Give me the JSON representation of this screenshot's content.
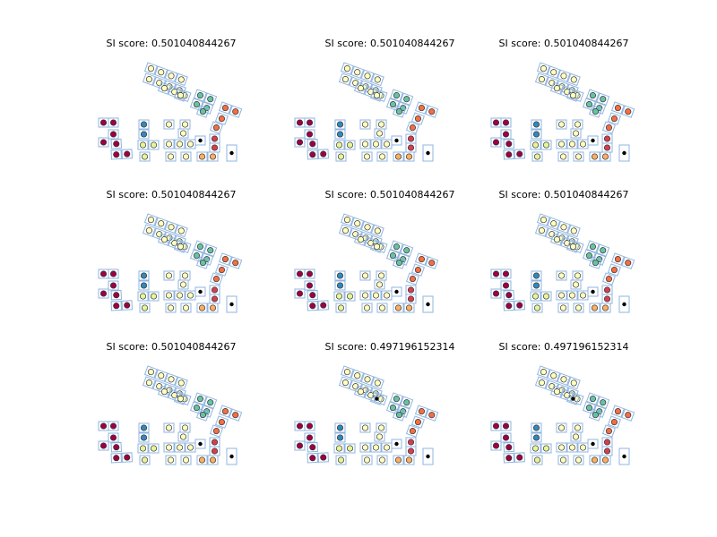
{
  "chart_data": [
    {
      "type": "scatter",
      "title": "SI score: 0.501040844267",
      "variant": 0
    },
    {
      "type": "scatter",
      "title": "SI score: 0.501040844267",
      "variant": 0
    },
    {
      "type": "scatter",
      "title": "SI score: 0.501040844267",
      "variant": 0
    },
    {
      "type": "scatter",
      "title": "SI score: 0.501040844267",
      "variant": 0
    },
    {
      "type": "scatter",
      "title": "SI score: 0.501040844267",
      "variant": 0
    },
    {
      "type": "scatter",
      "title": "SI score: 0.501040844267",
      "variant": 0
    },
    {
      "type": "scatter",
      "title": "SI score: 0.501040844267",
      "variant": 0
    },
    {
      "type": "scatter",
      "title": "SI score: 0.497196152314",
      "variant": 1
    },
    {
      "type": "scatter",
      "title": "SI score: 0.497196152314",
      "variant": 1
    }
  ],
  "colors": {
    "box_edge": "#8fb5e0",
    "dark_red": "#9e0142",
    "blue": "#3288bd",
    "light_green": "#e6f598",
    "cream": "#ffffbf",
    "teal": "#66c2a5",
    "orange": "#f46d43",
    "black": "#000000"
  }
}
